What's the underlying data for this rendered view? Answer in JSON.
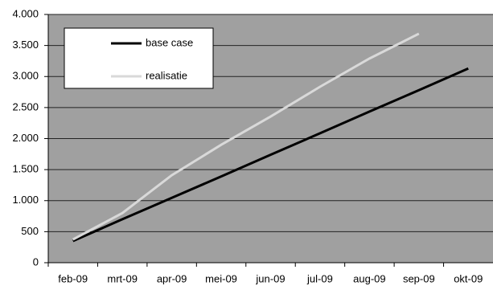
{
  "chart_data": {
    "type": "line",
    "categories": [
      "feb-09",
      "mrt-09",
      "apr-09",
      "mei-09",
      "jun-09",
      "jul-09",
      "aug-09",
      "sep-09",
      "okt-09"
    ],
    "series": [
      {
        "name": "base case",
        "color": "#000000",
        "values": [
          350,
          700,
          1045,
          1390,
          1740,
          2085,
          2435,
          2780,
          3130
        ]
      },
      {
        "name": "realisatie",
        "color": "#d9d9d9",
        "values": [
          375,
          800,
          1410,
          1900,
          2355,
          2835,
          3290,
          3690,
          null
        ]
      }
    ],
    "ylim": [
      0,
      4000
    ],
    "yticks": [
      0,
      500,
      {
        "value": 1000,
        "label": "1.000"
      },
      {
        "value": 1500,
        "label": "1.500"
      },
      {
        "value": 2000,
        "label": "2.000"
      },
      {
        "value": 2500,
        "label": "2.500"
      },
      {
        "value": 3000,
        "label": "3.000"
      },
      {
        "value": 3500,
        "label": "3.500"
      },
      {
        "value": 4000,
        "label": "4.000"
      }
    ],
    "grid": true,
    "legend": "upper left"
  }
}
